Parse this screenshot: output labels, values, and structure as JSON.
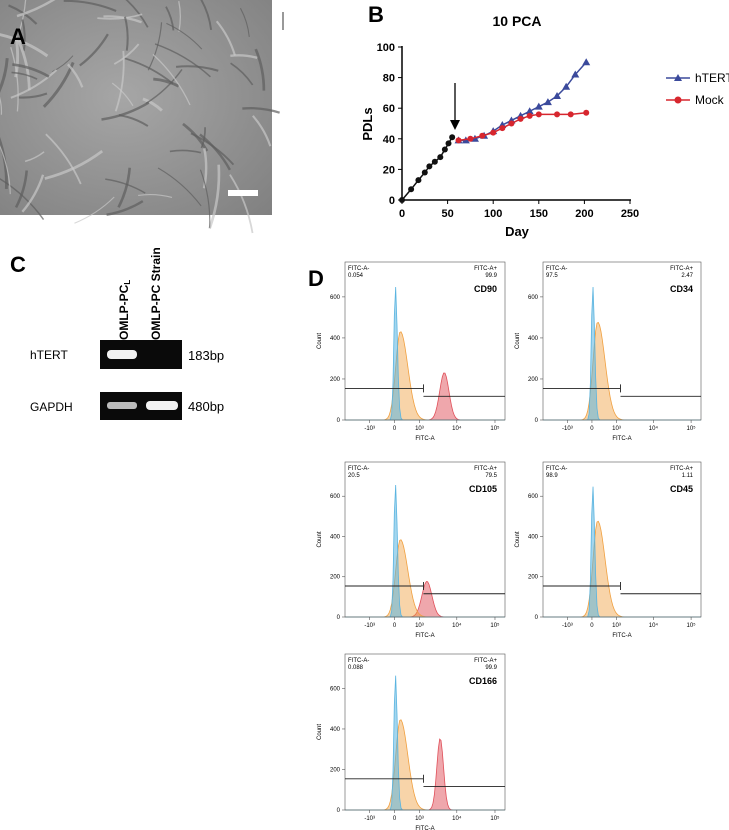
{
  "panel_labels": [
    "A",
    "B",
    "C",
    "D"
  ],
  "chart_data": {
    "type": "line",
    "title": "10 PCA",
    "x_label": "Day",
    "y_label": "PDLs",
    "xlim": [
      0,
      250
    ],
    "xticks": [
      0,
      50,
      100,
      150,
      200,
      250
    ],
    "ylim": [
      0,
      100
    ],
    "yticks": [
      0,
      20,
      40,
      60,
      80,
      100
    ],
    "series": [
      {
        "color": "#111111",
        "marker": "circle",
        "x": [
          0,
          10,
          18,
          25,
          30,
          36,
          42,
          47,
          51,
          55
        ],
        "values": [
          0,
          7,
          13,
          18,
          22,
          25,
          28,
          33,
          37,
          41
        ]
      },
      {
        "name": "hTERT",
        "color": "#3b4a9c",
        "marker": "triangle",
        "x": [
          62,
          70,
          80,
          90,
          100,
          110,
          120,
          130,
          140,
          150,
          160,
          170,
          180,
          190,
          202
        ],
        "values": [
          39,
          39,
          40,
          42,
          45,
          49,
          52,
          55,
          58,
          61,
          64,
          68,
          74,
          82,
          90
        ]
      },
      {
        "name": "Mock",
        "color": "#d7262e",
        "marker": "circle",
        "x": [
          62,
          75,
          88,
          100,
          110,
          120,
          130,
          140,
          150,
          170,
          185,
          202
        ],
        "values": [
          39,
          40,
          42,
          44,
          47,
          50,
          53,
          55,
          56,
          56,
          56,
          57
        ]
      }
    ]
  },
  "gel": {
    "columns": [
      {
        "text": "OMLP-PC",
        "subscript": "L"
      },
      {
        "text": "OMLP-PC Strain"
      }
    ],
    "rows": [
      {
        "gene": "hTERT",
        "size": "183bp"
      },
      {
        "gene": "GAPDH",
        "size": "480bp"
      }
    ]
  },
  "flow": {
    "y_label": "Count",
    "x_label": "FITC-A",
    "gate_neg": "FITC-A-",
    "gate_pos": "FITC-A+",
    "ylim": [
      0,
      770
    ],
    "yticks": [
      0,
      200,
      400,
      600
    ],
    "xlim": [
      -4650,
      183000
    ],
    "xticks": [
      {
        "value": -1000,
        "label": "-10³"
      },
      0,
      {
        "value": 1000,
        "label": "10³"
      },
      {
        "value": 10000,
        "label": "10⁴"
      },
      {
        "value": 100000,
        "label": "10⁵"
      }
    ],
    "panels": [
      {
        "marker": "CD90",
        "neg": 0.054,
        "pos": 99.9
      },
      {
        "marker": "CD34",
        "neg": 97.5,
        "pos": 2.47
      },
      {
        "marker": "CD105",
        "neg": 20.5,
        "pos": 79.5
      },
      {
        "marker": "CD45",
        "neg": 98.9,
        "pos": 1.11
      },
      {
        "marker": "CD166",
        "neg": 0.088,
        "pos": 99.9
      }
    ]
  }
}
